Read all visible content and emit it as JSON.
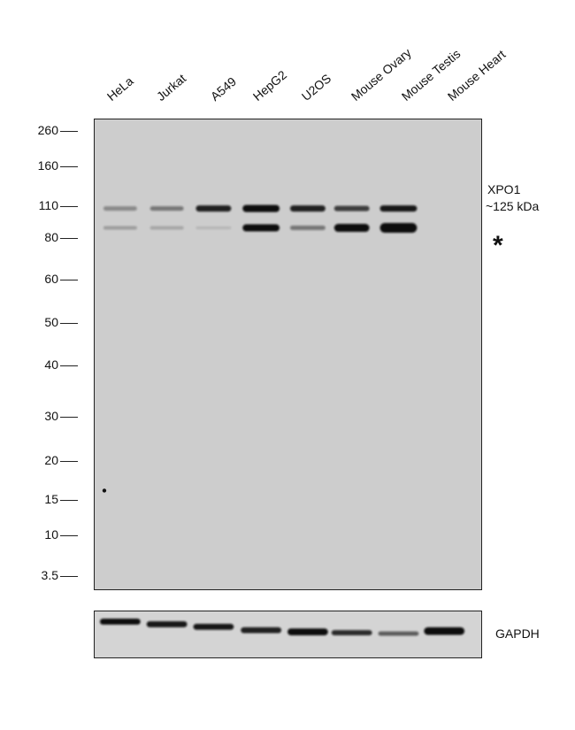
{
  "lanes": [
    "HeLa",
    "Jurkat",
    "A549",
    "HepG2",
    "U2OS",
    "Mouse Ovary",
    "Mouse Testis",
    "Mouse Heart"
  ],
  "mw_markers": [
    "260",
    "160",
    "110",
    "80",
    "60",
    "50",
    "40",
    "30",
    "20",
    "15",
    "10",
    "3.5"
  ],
  "target_label_line1": "XPO1",
  "target_label_line2": "~125 kDa",
  "nonspecific_marker": "*",
  "loading_control_label": "GAPDH",
  "colors": {
    "main_background": "#cdcdcd",
    "band": "#111111",
    "gapdh_background": "#d4d4d4"
  }
}
